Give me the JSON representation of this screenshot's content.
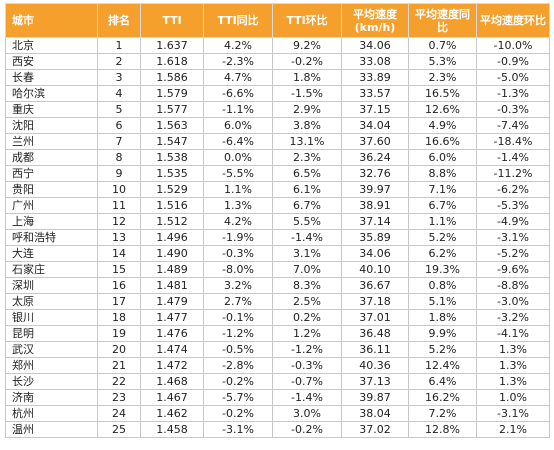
{
  "table": {
    "header": [
      "城市",
      "排名",
      "TTI",
      "TTI同比",
      "TTI环比",
      "平均速度(km/h)",
      "平均速度同比",
      "平均速度环比"
    ],
    "rows": [
      [
        "北京",
        "1",
        "1.637",
        "4.2%",
        "9.2%",
        "34.06",
        "0.7%",
        "-10.0%"
      ],
      [
        "西安",
        "2",
        "1.618",
        "-2.3%",
        "-0.2%",
        "33.08",
        "5.3%",
        "-0.9%"
      ],
      [
        "长春",
        "3",
        "1.586",
        "4.7%",
        "1.8%",
        "33.89",
        "2.3%",
        "-5.0%"
      ],
      [
        "哈尔滨",
        "4",
        "1.579",
        "-6.6%",
        "-1.5%",
        "33.57",
        "16.5%",
        "-1.3%"
      ],
      [
        "重庆",
        "5",
        "1.577",
        "-1.1%",
        "2.9%",
        "37.15",
        "12.6%",
        "-0.3%"
      ],
      [
        "沈阳",
        "6",
        "1.563",
        "6.0%",
        "3.8%",
        "34.04",
        "4.9%",
        "-7.4%"
      ],
      [
        "兰州",
        "7",
        "1.547",
        "-6.4%",
        "13.1%",
        "37.60",
        "16.6%",
        "-18.4%"
      ],
      [
        "成都",
        "8",
        "1.538",
        "0.0%",
        "2.3%",
        "36.24",
        "6.0%",
        "-1.4%"
      ],
      [
        "西宁",
        "9",
        "1.535",
        "-5.5%",
        "6.5%",
        "32.76",
        "8.8%",
        "-11.2%"
      ],
      [
        "贵阳",
        "10",
        "1.529",
        "1.1%",
        "6.1%",
        "39.97",
        "7.1%",
        "-6.2%"
      ],
      [
        "广州",
        "11",
        "1.516",
        "1.3%",
        "6.7%",
        "38.91",
        "6.7%",
        "-5.3%"
      ],
      [
        "上海",
        "12",
        "1.512",
        "4.2%",
        "5.5%",
        "37.14",
        "1.1%",
        "-4.9%"
      ],
      [
        "呼和浩特",
        "13",
        "1.496",
        "-1.9%",
        "-1.4%",
        "35.89",
        "5.2%",
        "-3.1%"
      ],
      [
        "大连",
        "14",
        "1.490",
        "-0.3%",
        "3.1%",
        "34.06",
        "6.2%",
        "-5.2%"
      ],
      [
        "石家庄",
        "15",
        "1.489",
        "-8.0%",
        "7.0%",
        "40.10",
        "19.3%",
        "-9.6%"
      ],
      [
        "深圳",
        "16",
        "1.481",
        "3.2%",
        "8.3%",
        "36.67",
        "0.8%",
        "-8.8%"
      ],
      [
        "太原",
        "17",
        "1.479",
        "2.7%",
        "2.5%",
        "37.18",
        "5.1%",
        "-3.0%"
      ],
      [
        "银川",
        "18",
        "1.477",
        "-0.1%",
        "0.2%",
        "37.01",
        "1.8%",
        "-3.2%"
      ],
      [
        "昆明",
        "19",
        "1.476",
        "-1.2%",
        "1.2%",
        "36.48",
        "9.9%",
        "-4.1%"
      ],
      [
        "武汉",
        "20",
        "1.474",
        "-0.5%",
        "-1.2%",
        "36.11",
        "5.2%",
        "1.3%"
      ],
      [
        "郑州",
        "21",
        "1.472",
        "-2.8%",
        "-0.3%",
        "40.36",
        "12.4%",
        "1.3%"
      ],
      [
        "长沙",
        "22",
        "1.468",
        "-0.2%",
        "-0.7%",
        "37.13",
        "6.4%",
        "1.3%"
      ],
      [
        "济南",
        "23",
        "1.467",
        "-5.7%",
        "-1.4%",
        "39.87",
        "16.2%",
        "1.0%"
      ],
      [
        "杭州",
        "24",
        "1.462",
        "-0.2%",
        "3.0%",
        "38.04",
        "7.2%",
        "-3.1%"
      ],
      [
        "温州",
        "25",
        "1.458",
        "-3.1%",
        "-0.2%",
        "37.02",
        "12.8%",
        "2.1%"
      ]
    ]
  }
}
